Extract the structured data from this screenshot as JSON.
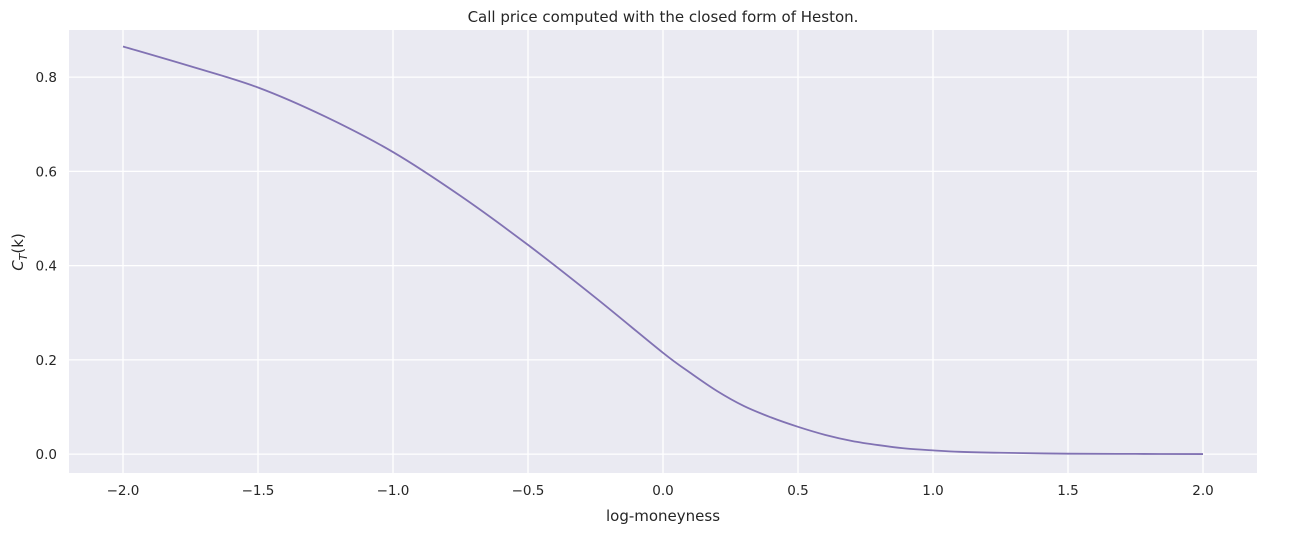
{
  "chart_data": {
    "type": "line",
    "title": "Call price computed with the closed form of Heston.",
    "xlabel": "log-moneyness",
    "ylabel": {
      "base": "C",
      "subscript": "T",
      "arg": "(k)"
    },
    "xlim": [
      -2.2,
      2.2
    ],
    "ylim": [
      -0.04,
      0.9
    ],
    "xticks": [
      -2.0,
      -1.5,
      -1.0,
      -0.5,
      0.0,
      0.5,
      1.0,
      1.5,
      2.0
    ],
    "xtick_labels": [
      "−2.0",
      "−1.5",
      "−1.0",
      "−0.5",
      "0.0",
      "0.5",
      "1.0",
      "1.5",
      "2.0"
    ],
    "yticks": [
      0.0,
      0.2,
      0.4,
      0.6,
      0.8
    ],
    "ytick_labels": [
      "0.0",
      "0.2",
      "0.4",
      "0.6",
      "0.8"
    ],
    "grid": true,
    "colors": {
      "background": "#eaeaf2",
      "grid": "#ffffff",
      "line": "#8172b3",
      "text": "#262626"
    },
    "series": [
      {
        "x": [
          -2.0,
          -1.75,
          -1.5,
          -1.25,
          -1.0,
          -0.75,
          -0.5,
          -0.25,
          0.0,
          0.1,
          0.2,
          0.3,
          0.4,
          0.5,
          0.6,
          0.7,
          0.8,
          0.9,
          1.0,
          1.1,
          1.25,
          1.5,
          1.75,
          2.0
        ],
        "y": [
          0.865,
          0.823,
          0.778,
          0.716,
          0.641,
          0.548,
          0.444,
          0.332,
          0.215,
          0.173,
          0.134,
          0.102,
          0.078,
          0.058,
          0.041,
          0.028,
          0.019,
          0.012,
          0.008,
          0.005,
          0.003,
          0.001,
          0.0005,
          0.0002
        ]
      }
    ]
  }
}
